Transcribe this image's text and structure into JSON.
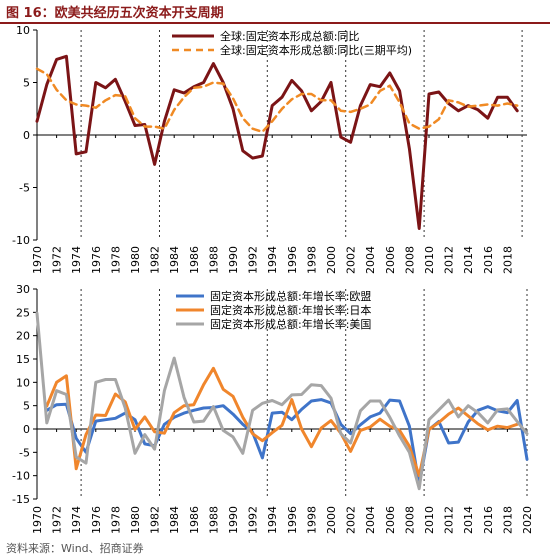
{
  "figure": {
    "title": "图 16：欧美共经历五次资本开支周期",
    "source": "资料来源：Wind、招商证券"
  },
  "colors": {
    "title": "#8b1a1a",
    "world": "#7b1416",
    "world_avg": "#f08a24",
    "eu": "#3f74c9",
    "japan": "#f0862c",
    "us": "#a6a6a6",
    "marker": "#333333"
  },
  "chart_data": [
    {
      "type": "line",
      "title": "",
      "xlabel": "",
      "ylabel": "",
      "xlim": [
        1970,
        2020
      ],
      "ylim": [
        -10,
        10
      ],
      "yticks": [
        -10,
        -5,
        0,
        5,
        10
      ],
      "xticks": [
        "1970",
        "1972",
        "1974",
        "1976",
        "1978",
        "1980",
        "1982",
        "1984",
        "1986",
        "1988",
        "1990",
        "1992",
        "1994",
        "1996",
        "1998",
        "2000",
        "2002",
        "2004",
        "2006",
        "2008",
        "2010",
        "2012",
        "2014",
        "2016",
        "2018"
      ],
      "grid": false,
      "legend": "top-center",
      "cycle_markers": [
        1974.5,
        1982.5,
        1993.5,
        2001.5,
        2009.5,
        2019.5
      ],
      "x": [
        1970,
        1971,
        1972,
        1973,
        1974,
        1975,
        1976,
        1977,
        1978,
        1979,
        1980,
        1981,
        1982,
        1983,
        1984,
        1985,
        1986,
        1987,
        1988,
        1989,
        1990,
        1991,
        1992,
        1993,
        1994,
        1995,
        1996,
        1997,
        1998,
        1999,
        2000,
        2001,
        2002,
        2003,
        2004,
        2005,
        2006,
        2007,
        2008,
        2009,
        2010,
        2011,
        2012,
        2013,
        2014,
        2015,
        2016,
        2017,
        2018,
        2019
      ],
      "series": [
        {
          "name": "全球:固定资本形成总额:同比",
          "style": "solid",
          "values": [
            1.3,
            4.8,
            7.2,
            7.5,
            -1.8,
            -1.6,
            5.0,
            4.5,
            5.3,
            3.2,
            0.9,
            1.0,
            -2.8,
            1.3,
            4.3,
            4.0,
            4.6,
            5.0,
            6.8,
            5.0,
            2.5,
            -1.5,
            -2.2,
            -2.0,
            2.8,
            3.6,
            5.2,
            4.2,
            2.3,
            3.2,
            5.0,
            -0.2,
            -0.7,
            2.8,
            4.8,
            4.6,
            5.9,
            4.2,
            -1.3,
            -8.9,
            3.9,
            4.1,
            3.0,
            2.3,
            2.8,
            2.4,
            1.6,
            3.6,
            3.6,
            2.3
          ]
        },
        {
          "name": "全球:固定资本形成总额:同比(三期平均)",
          "style": "dashed",
          "values": [
            6.3,
            5.8,
            4.3,
            3.3,
            2.9,
            2.8,
            2.6,
            3.3,
            3.8,
            3.7,
            1.6,
            0.8,
            0.8,
            0.6,
            2.4,
            3.6,
            4.5,
            4.6,
            5.0,
            4.9,
            3.5,
            1.6,
            0.6,
            0.3,
            1.3,
            2.5,
            3.4,
            3.9,
            3.9,
            3.3,
            3.3,
            2.3,
            2.2,
            2.5,
            2.9,
            4.2,
            4.7,
            3.1,
            1.1,
            0.6,
            0.8,
            1.5,
            3.3,
            3.1,
            2.7,
            2.8,
            2.9,
            2.8,
            3.0,
            2.8
          ]
        }
      ]
    },
    {
      "type": "line",
      "title": "",
      "xlabel": "",
      "ylabel": "",
      "xlim": [
        1970,
        2020
      ],
      "ylim": [
        -15,
        30
      ],
      "yticks": [
        -15,
        -10,
        -5,
        0,
        5,
        10,
        15,
        20,
        25,
        30
      ],
      "xticks": [
        "1970",
        "1972",
        "1974",
        "1976",
        "1978",
        "1980",
        "1982",
        "1984",
        "1986",
        "1988",
        "1990",
        "1992",
        "1994",
        "1996",
        "1998",
        "2000",
        "2002",
        "2004",
        "2006",
        "2008",
        "2010",
        "2012",
        "2014",
        "2016",
        "2018",
        "2020"
      ],
      "grid": false,
      "legend": "top-center",
      "cycle_markers": [
        1974.5,
        1982.5,
        1993.5,
        2001.5,
        2009.5,
        2020
      ],
      "x": [
        1970,
        1971,
        1972,
        1973,
        1974,
        1975,
        1976,
        1977,
        1978,
        1979,
        1980,
        1981,
        1982,
        1983,
        1984,
        1985,
        1986,
        1987,
        1988,
        1989,
        1990,
        1991,
        1992,
        1993,
        1994,
        1995,
        1996,
        1997,
        1998,
        1999,
        2000,
        2001,
        2002,
        2003,
        2004,
        2005,
        2006,
        2007,
        2008,
        2009,
        2010,
        2011,
        2012,
        2013,
        2014,
        2015,
        2016,
        2017,
        2018,
        2019,
        2020
      ],
      "series": [
        {
          "name": "固定资本形成总额:年增长率:欧盟",
          "values": [
            null,
            4.0,
            5.2,
            5.3,
            -2.0,
            -5.0,
            1.7,
            2.0,
            2.3,
            3.4,
            2.0,
            -3.2,
            -3.6,
            1.0,
            2.5,
            3.4,
            4.0,
            4.5,
            4.6,
            5.0,
            3.2,
            1.0,
            -0.7,
            -6.2,
            3.4,
            3.6,
            2.0,
            4.2,
            6.0,
            6.3,
            5.6,
            1.0,
            -1.0,
            0.9,
            2.6,
            3.4,
            6.2,
            6.0,
            0.6,
            -12.0,
            -0.1,
            1.6,
            -3.0,
            -2.8,
            1.5,
            4.0,
            4.8,
            3.9,
            3.5,
            6.1,
            -6.5
          ]
        },
        {
          "name": "固定资本形成总额:年增长率:日本",
          "values": [
            null,
            4.9,
            10.0,
            11.4,
            -8.5,
            -1.2,
            3.0,
            2.9,
            7.5,
            5.8,
            -0.1,
            2.6,
            -0.6,
            -0.9,
            3.5,
            5.0,
            5.2,
            9.5,
            13.0,
            8.5,
            7.0,
            2.5,
            -1.0,
            -2.5,
            -0.8,
            0.8,
            6.3,
            0.0,
            -3.8,
            0.2,
            1.8,
            -0.9,
            -4.8,
            -0.3,
            0.4,
            2.1,
            0.6,
            -0.3,
            -3.7,
            -10.0,
            -0.1,
            1.4,
            3.2,
            4.5,
            2.8,
            1.1,
            -0.2,
            0.6,
            0.3,
            1.0,
            null
          ]
        },
        {
          "name": "固定资本形成总额:年增长率:美国",
          "values": [
            24.8,
            1.3,
            8.2,
            7.4,
            -6.0,
            -7.3,
            10.0,
            10.6,
            10.6,
            4.5,
            -5.2,
            -1.2,
            -4.3,
            8.2,
            15.2,
            6.8,
            1.5,
            1.7,
            4.8,
            -0.3,
            -1.7,
            -5.2,
            4.0,
            5.5,
            6.1,
            5.2,
            7.3,
            7.4,
            9.5,
            9.3,
            6.6,
            -1.0,
            -3.0,
            3.9,
            6.0,
            6.0,
            2.5,
            -1.5,
            -5.0,
            -12.8,
            2.0,
            4.1,
            6.2,
            2.6,
            5.0,
            3.5,
            1.3,
            4.1,
            4.3,
            1.6,
            -1.0
          ]
        }
      ]
    }
  ]
}
